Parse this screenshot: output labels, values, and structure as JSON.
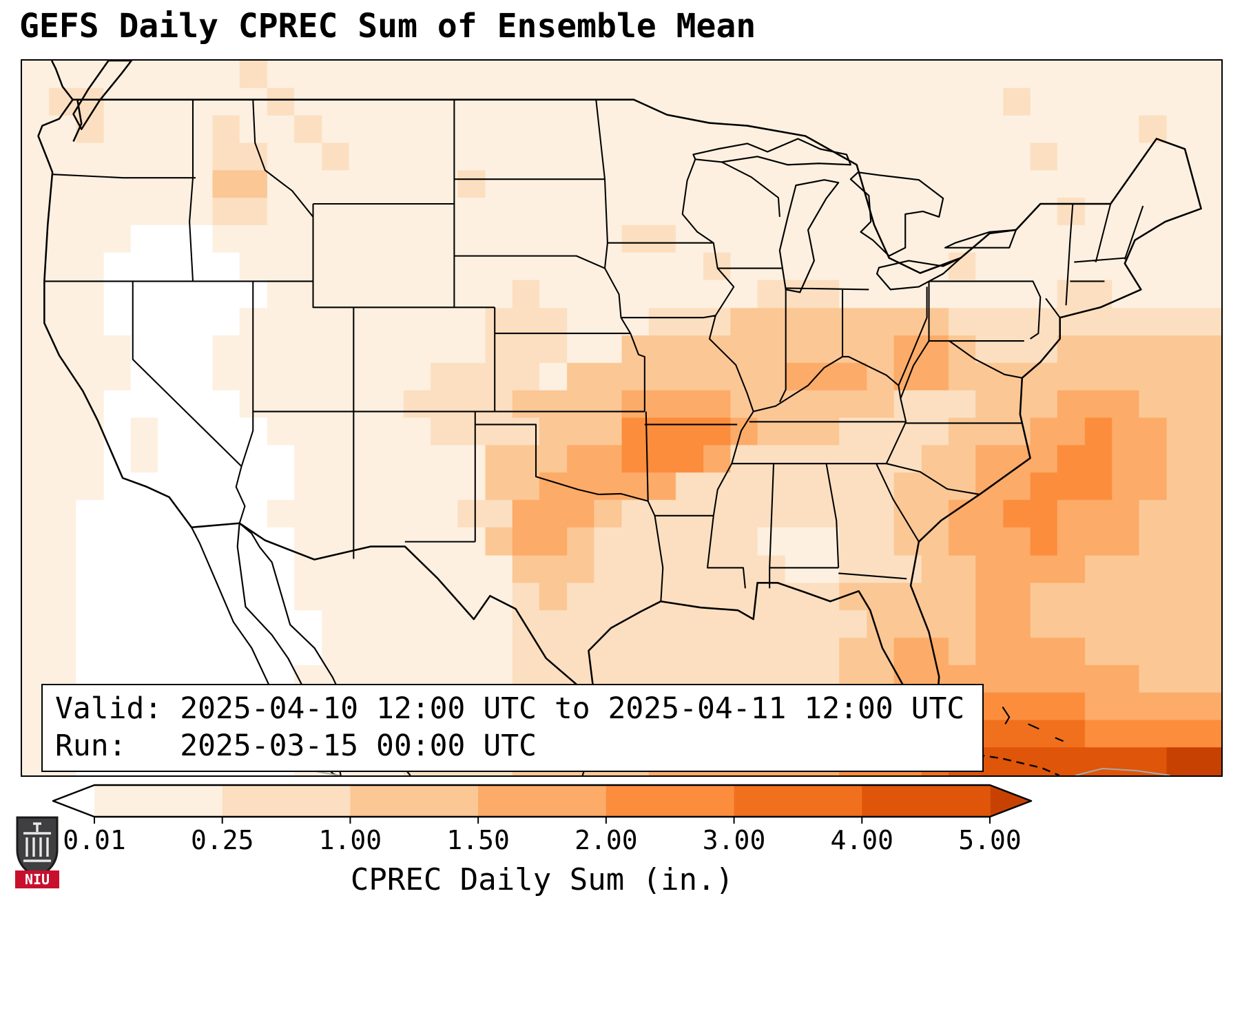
{
  "title": "GEFS Daily CPREC Sum of Ensemble Mean",
  "info_box": {
    "valid_line": "Valid: 2025-04-10 12:00 UTC to 2025-04-11 12:00 UTC",
    "run_line": "Run:   2025-03-15 00:00 UTC"
  },
  "colorbar": {
    "label": "CPREC Daily Sum (in.)",
    "ticks": [
      "0.01",
      "0.25",
      "1.00",
      "1.50",
      "2.00",
      "3.00",
      "4.00",
      "5.00"
    ],
    "orientation": "horizontal",
    "extend": "both"
  },
  "logo": {
    "text": "NIU",
    "shield_color": "#3f3f41",
    "band_color": "#c8102e"
  },
  "chart_data": {
    "type": "heatmap",
    "title": "GEFS Daily CPREC Sum of Ensemble Mean",
    "colorbar_label": "CPREC Daily Sum (in.)",
    "valid": "2025-04-10 12:00 UTC to 2025-04-11 12:00 UTC",
    "run": "2025-03-15 00:00 UTC",
    "levels_in": [
      0.01,
      0.25,
      1.0,
      1.5,
      2.0,
      3.0,
      4.0,
      5.0
    ],
    "bin_colors": [
      "#ffffff",
      "#fdf0e0",
      "#fbdfc0",
      "#fbc795",
      "#fcab68",
      "#fb8d3d",
      "#f1701e",
      "#df5509",
      "#c64102"
    ],
    "bin_meaning": [
      "<0.01",
      "0.01-0.25",
      "0.25-1.00",
      "1.00-1.50",
      "1.50-2.00",
      "2.00-3.00",
      "3.00-4.00",
      "4.00-5.00",
      ">5.00"
    ],
    "grid": {
      "cols": 44,
      "rows_count": 26,
      "bin_rows": [
        "11111111211111111111111111111111111111111111",
        "12211111121111111111111111111111111121111111",
        "11211112112111111111111111111111111111111211",
        "11111112211211111111111111111111111112111111",
        "11111113311111112111111111111111111111111111",
        "11111112211111111111111111111111111111211111",
        "11110001111111111111112211111111111111111111",
        "11100000111111111111111112111111112111111111",
        "11100000011111111121111111122211111111221111",
        "11100000111111111222111222333333332222222222",
        "11110001111111111222113333333333443222333333",
        "11110001111111122221333333334443443333333333",
        "11100000111111222233334444333333222333444333",
        "11101000011111122223335555433322223334454433",
        "11101000001111111333445554222222233444554433",
        "11100000001111111334444422222222333445554433",
        "11000000011111112244432222222222334455444333",
        "11000000001111111344322222211122334445444333",
        "11000000001111111133322222221122233444433333",
        "11000000001111111123222222222233333443333333",
        "11000000000111111122222222222223333443333333",
        "11000000000111111122222222222233443444433333",
        "11000000001111111122222222222233444444444333",
        "11000000001111111122222222223333445555544444",
        "11000000001111111223223333333344456666655555",
        "11000000001111222233333444444455567777777788"
      ]
    }
  }
}
